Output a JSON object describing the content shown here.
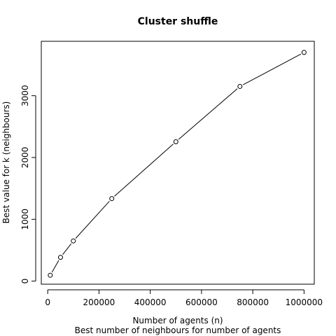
{
  "chart_data": {
    "type": "line",
    "title": "Cluster shuffle",
    "xlabel": "Number of agents (n)",
    "subtitle": "Best number of neighbours for number of agents",
    "ylabel": "Best value for k (neighbours)",
    "xlim": [
      -25000,
      1040000
    ],
    "ylim": [
      -50,
      3880
    ],
    "x_ticks": [
      0,
      200000,
      400000,
      600000,
      800000,
      1000000
    ],
    "x_tick_labels": [
      "0",
      "200000",
      "400000",
      "600000",
      "800000",
      "1000000"
    ],
    "y_ticks": [
      0,
      1000,
      2000,
      3000
    ],
    "y_tick_labels": [
      "0",
      "1000",
      "2000",
      "3000"
    ],
    "grid": false,
    "series": [
      {
        "x": [
          10000,
          50000,
          100000,
          250000,
          500000,
          750000,
          1000000
        ],
        "y": [
          95,
          385,
          650,
          1335,
          2255,
          3150,
          3700
        ],
        "marker": "open-circle",
        "line_color": "#000000"
      }
    ]
  }
}
